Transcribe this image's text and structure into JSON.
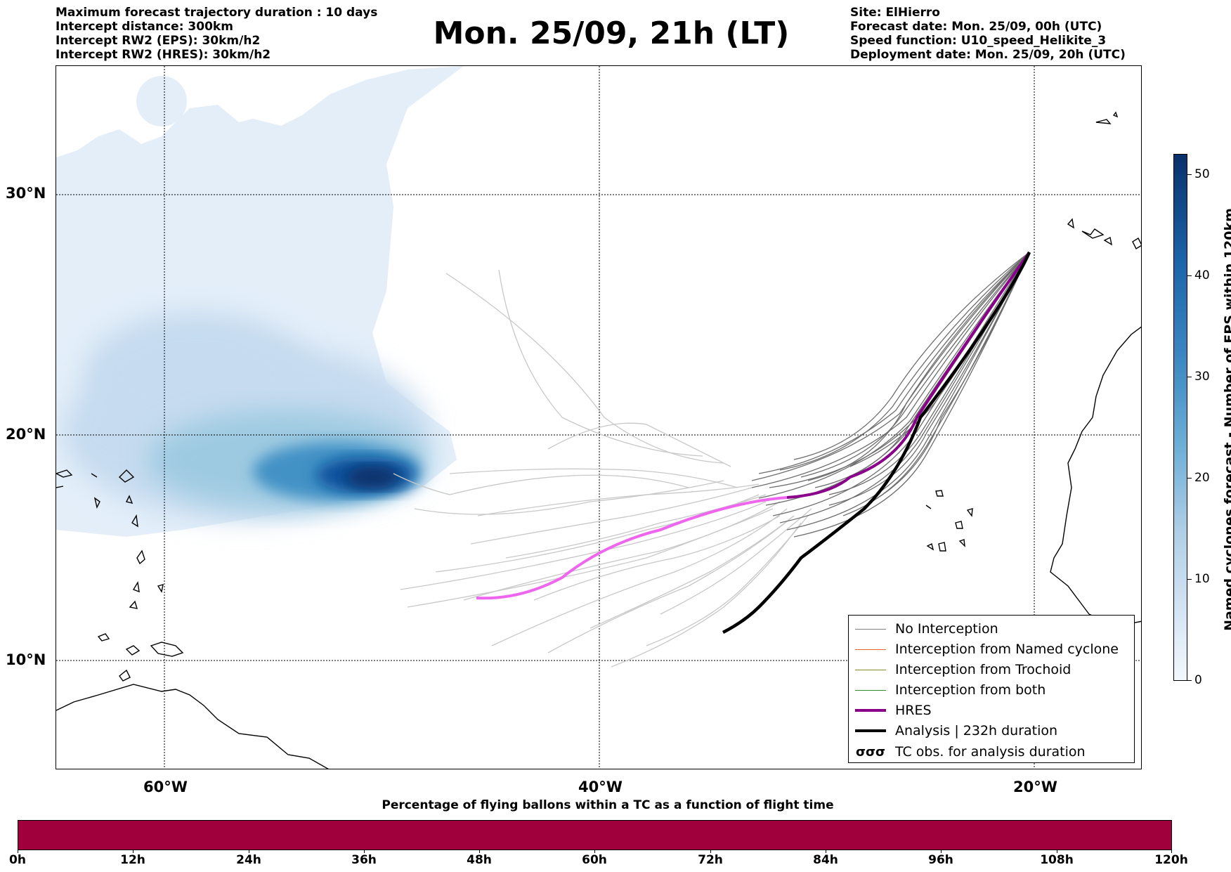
{
  "header": {
    "left_lines": [
      "Maximum forecast trajectory duration : 10 days",
      "Intercept distance: 300km",
      "Intercept RW2 (EPS):  30km/h2",
      "Intercept RW2 (HRES): 30km/h2"
    ],
    "title": "Mon. 25/09, 21h (LT)",
    "right_lines": [
      "Site: ElHierro",
      "Forecast date: Mon. 25/09, 00h (UTC)",
      "Speed function: U10_speed_Helikite_3",
      "Deployment date: Mon. 25/09, 20h (UTC)"
    ]
  },
  "map": {
    "lat_labels": [
      "30°N",
      "20°N",
      "10°N"
    ],
    "lon_labels": [
      "60°W",
      "40°W",
      "20°W"
    ]
  },
  "legend": {
    "items": [
      {
        "label": "No Interception",
        "color": "#808080",
        "style": "thin"
      },
      {
        "label": "Interception from Named cyclone",
        "color": "#e8642a",
        "style": "thin"
      },
      {
        "label": "Interception from Trochoid",
        "color": "#8a8a2a",
        "style": "thin"
      },
      {
        "label": "Interception from both",
        "color": "#2e8b2e",
        "style": "thin"
      },
      {
        "label": "HRES",
        "color": "#8b008b",
        "style": "thick"
      },
      {
        "label": "Analysis | 232h duration",
        "color": "#000000",
        "style": "thick"
      },
      {
        "label": "TC obs. for analysis duration",
        "color": "#000000",
        "style": "symbol",
        "symbol": "σσσ"
      }
    ]
  },
  "colorbar": {
    "title": "Named cyclones forecast - Number of EPS within 120km",
    "ticks": [
      "0",
      "10",
      "20",
      "30",
      "40",
      "50"
    ],
    "range": [
      0,
      52
    ],
    "colors": [
      "#f3f8fd",
      "#08306b"
    ]
  },
  "time_bar": {
    "title": "Percentage of flying ballons within a TC as a function of flight time",
    "ticks": [
      "0h",
      "12h",
      "24h",
      "36h",
      "48h",
      "60h",
      "72h",
      "84h",
      "96h",
      "108h",
      "120h"
    ],
    "fill_color": "#a0003c"
  }
}
